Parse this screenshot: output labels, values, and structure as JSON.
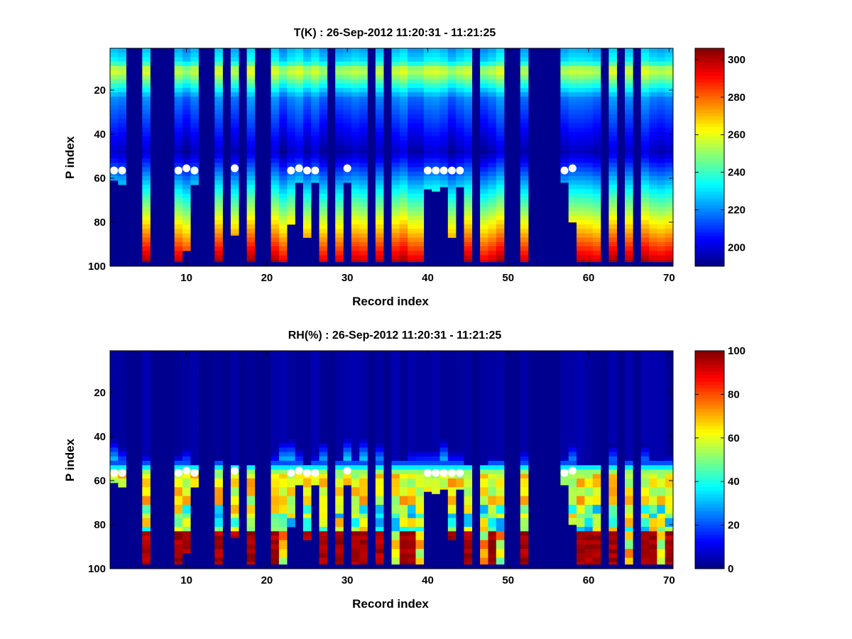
{
  "chart_data": [
    {
      "type": "heatmap",
      "title": "T(K) : 26-Sep-2012 11:20:31 - 11:21:25",
      "xlabel": "Record index",
      "ylabel": "P index",
      "xlim": [
        0.5,
        70.5
      ],
      "ylim": [
        1,
        100
      ],
      "y_reversed": true,
      "xticks": [
        10,
        20,
        30,
        40,
        50,
        60,
        70
      ],
      "yticks": [
        20,
        40,
        60,
        80,
        100
      ],
      "colorbar": {
        "min": 190,
        "max": 306,
        "ticks": [
          200,
          220,
          240,
          260,
          280,
          300
        ],
        "colormap": "jet"
      },
      "variable": "temperature",
      "marker_p": [
        56.5,
        56.5,
        null,
        null,
        null,
        null,
        null,
        null,
        56.5,
        55.5,
        56.5,
        null,
        null,
        null,
        null,
        55.5,
        null,
        null,
        null,
        null,
        null,
        null,
        56.5,
        55.5,
        56.5,
        56.5,
        null,
        null,
        null,
        55.5,
        null,
        null,
        null,
        null,
        null,
        null,
        null,
        null,
        null,
        56.5,
        56.5,
        56.5,
        56.5,
        56.5,
        null,
        null,
        null,
        null,
        null,
        null,
        null,
        null,
        null,
        null,
        null,
        null,
        56.5,
        55.5,
        null,
        null,
        null,
        null,
        null,
        null,
        null,
        null,
        null,
        null,
        null,
        null
      ]
    },
    {
      "type": "heatmap",
      "title": "RH(%) : 26-Sep-2012 11:20:31 - 11:21:25",
      "xlabel": "Record index",
      "ylabel": "P index",
      "xlim": [
        0.5,
        70.5
      ],
      "ylim": [
        1,
        100
      ],
      "y_reversed": true,
      "xticks": [
        10,
        20,
        30,
        40,
        50,
        60,
        70
      ],
      "yticks": [
        20,
        40,
        60,
        80,
        100
      ],
      "colorbar": {
        "min": 0,
        "max": 100,
        "ticks": [
          0,
          20,
          40,
          60,
          80,
          100
        ],
        "colormap": "jet"
      },
      "variable": "humidity",
      "marker_p": [
        56.5,
        56.5,
        null,
        null,
        null,
        null,
        null,
        null,
        56.5,
        55.5,
        56.5,
        null,
        null,
        null,
        null,
        55.5,
        null,
        null,
        null,
        null,
        null,
        null,
        56.5,
        55.5,
        56.5,
        56.5,
        null,
        null,
        null,
        55.5,
        null,
        null,
        null,
        null,
        null,
        null,
        null,
        null,
        null,
        56.5,
        56.5,
        56.5,
        56.5,
        56.5,
        null,
        null,
        null,
        null,
        null,
        null,
        null,
        null,
        null,
        null,
        null,
        null,
        56.5,
        55.5,
        null,
        null,
        null,
        null,
        null,
        null,
        null,
        null,
        null,
        null,
        null,
        null
      ]
    }
  ],
  "profiles": {
    "valid_bottom_p": [
      61,
      63,
      0,
      0,
      98,
      0,
      0,
      0,
      98,
      93,
      63,
      0,
      0,
      98,
      0,
      86,
      0,
      98,
      0,
      0,
      98,
      98,
      81,
      62,
      87,
      62,
      98,
      0,
      98,
      62,
      98,
      98,
      0,
      98,
      0,
      98,
      98,
      98,
      98,
      65,
      66,
      64,
      87,
      64,
      98,
      0,
      98,
      98,
      98,
      0,
      0,
      98,
      0,
      0,
      0,
      0,
      62,
      80,
      98,
      98,
      98,
      0,
      98,
      0,
      98,
      0,
      98,
      98,
      98,
      98
    ]
  }
}
